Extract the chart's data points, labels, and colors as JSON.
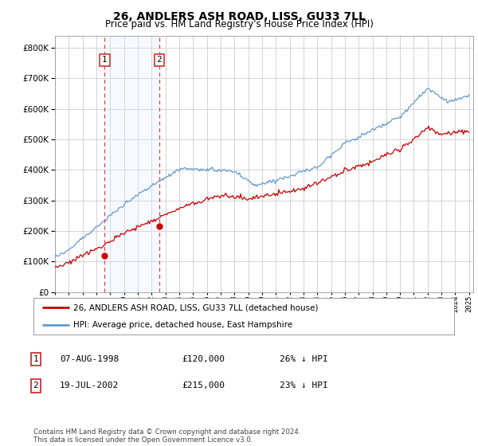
{
  "title": "26, ANDLERS ASH ROAD, LISS, GU33 7LL",
  "subtitle": "Price paid vs. HM Land Registry's House Price Index (HPI)",
  "legend_line1": "26, ANDLERS ASH ROAD, LISS, GU33 7LL (detached house)",
  "legend_line2": "HPI: Average price, detached house, East Hampshire",
  "table_rows": [
    {
      "num": "1",
      "date": "07-AUG-1998",
      "price": "£120,000",
      "hpi": "26% ↓ HPI"
    },
    {
      "num": "2",
      "date": "19-JUL-2002",
      "price": "£215,000",
      "hpi": "23% ↓ HPI"
    }
  ],
  "footnote": "Contains HM Land Registry data © Crown copyright and database right 2024.\nThis data is licensed under the Open Government Licence v3.0.",
  "sale1_year": 1998.6,
  "sale1_price": 120000,
  "sale2_year": 2002.55,
  "sale2_price": 215000,
  "vline1_year": 1998.6,
  "vline2_year": 2002.55,
  "red_line_color": "#cc0000",
  "blue_line_color": "#6699cc",
  "vline_color": "#dd4444",
  "shading_color": "#ddeeff",
  "bg_color": "#ffffff",
  "grid_color": "#cccccc",
  "ylim_max": 840000,
  "ylim_min": 0,
  "yticks": [
    0,
    100000,
    200000,
    300000,
    400000,
    500000,
    600000,
    700000,
    800000
  ]
}
